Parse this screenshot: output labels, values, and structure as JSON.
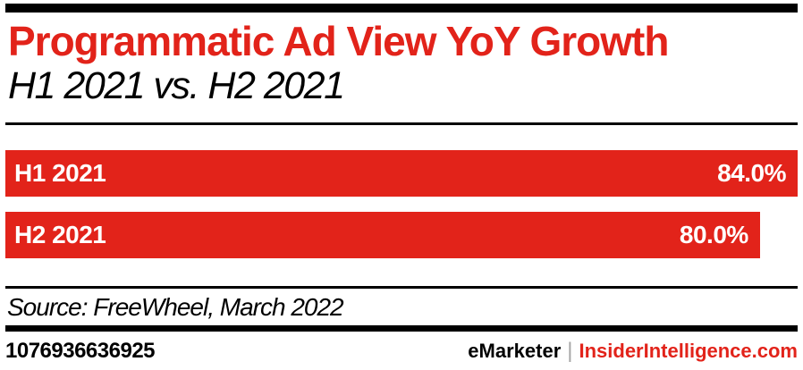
{
  "header": {
    "title": "Programmatic Ad View YoY Growth",
    "subtitle": "H1 2021 vs. H2 2021"
  },
  "chart_data": {
    "type": "bar",
    "orientation": "horizontal",
    "title": "Programmatic Ad View YoY Growth",
    "subtitle": "H1 2021 vs. H2 2021",
    "categories": [
      "H1 2021",
      "H2 2021"
    ],
    "values": [
      84.0,
      80.0
    ],
    "value_labels": [
      "84.0%",
      "80.0%"
    ],
    "value_suffix": "%",
    "xlim": [
      0,
      84
    ],
    "grid": false,
    "legend": false,
    "bar_color": "#e2231a",
    "bar_text_color": "#ffffff"
  },
  "footer": {
    "source": "Source: FreeWheel, March 2022",
    "chart_id": "1076936636925",
    "brand": "eMarketer",
    "divider": "|",
    "site": "InsiderIntelligence.com"
  },
  "colors": {
    "accent_red": "#e2231a",
    "black": "#000000",
    "divider_gray": "#a6a6a6",
    "white": "#ffffff"
  }
}
